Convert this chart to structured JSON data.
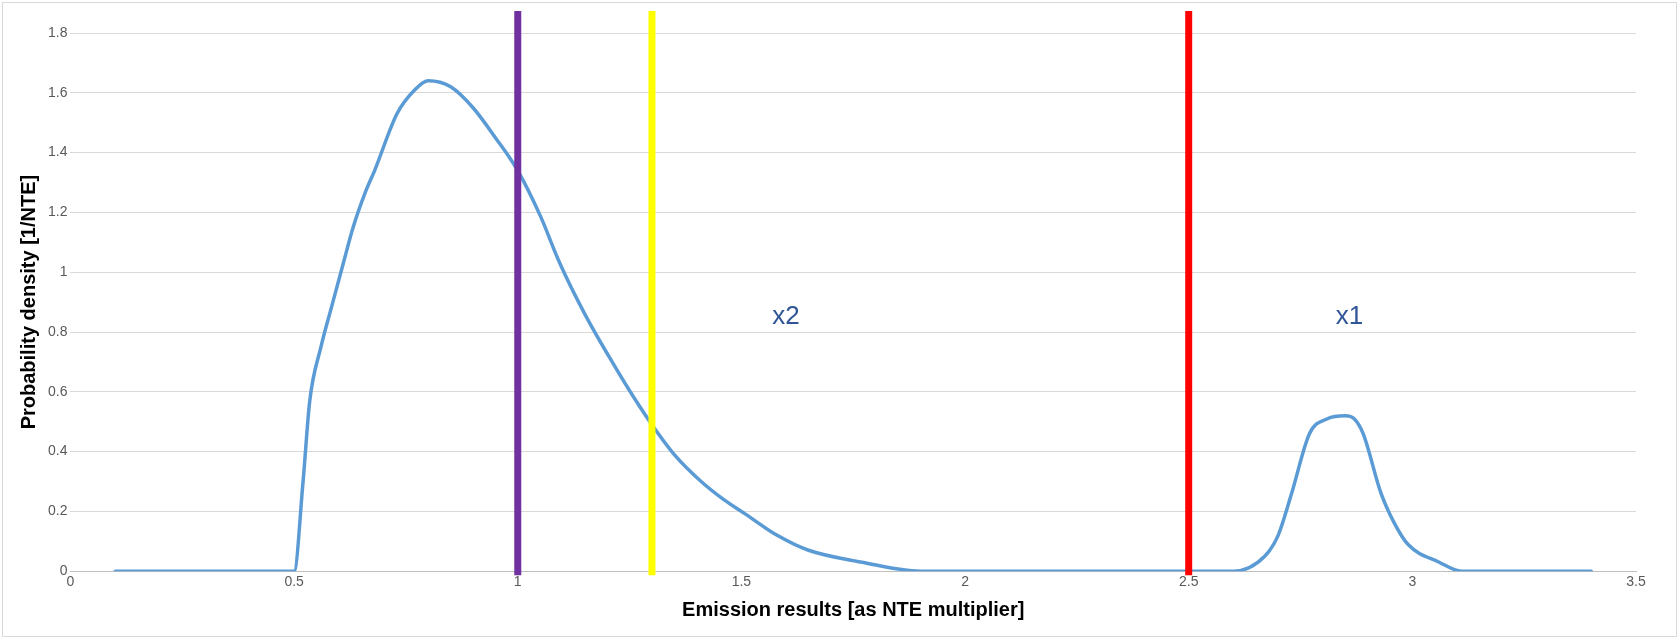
{
  "chart_data": {
    "type": "line",
    "xlabel": "Emission results [as NTE multiplier]",
    "ylabel": "Probability density [1/NTE]",
    "series": [
      {
        "color": "#5b9bd5",
        "x": [
          0.1,
          0.3,
          0.45,
          0.5,
          0.52,
          0.535,
          0.56,
          0.583,
          0.61,
          0.632,
          0.66,
          0.68,
          0.73,
          0.77,
          0.8,
          0.85,
          0.9,
          0.95,
          1.0,
          1.05,
          1.094,
          1.15,
          1.215,
          1.26,
          1.3,
          1.35,
          1.41,
          1.46,
          1.51,
          1.58,
          1.65,
          1.77,
          1.9,
          2.2,
          2.5,
          2.6,
          2.67,
          2.7,
          2.73,
          2.77,
          2.81,
          2.85,
          2.87,
          2.89,
          2.93,
          2.96,
          2.99,
          3.06,
          3.11,
          3.2,
          3.4
        ],
        "values": [
          0,
          0,
          0,
          0,
          0.3,
          0.57,
          0.75,
          0.88,
          1.03,
          1.15,
          1.27,
          1.34,
          1.53,
          1.61,
          1.64,
          1.62,
          1.55,
          1.45,
          1.34,
          1.19,
          1.03,
          0.86,
          0.69,
          0.58,
          0.49,
          0.39,
          0.3,
          0.24,
          0.19,
          0.12,
          0.07,
          0.03,
          0,
          0,
          0,
          0,
          0.05,
          0.12,
          0.26,
          0.46,
          0.51,
          0.52,
          0.51,
          0.46,
          0.26,
          0.16,
          0.09,
          0.03,
          0,
          0,
          0
        ]
      }
    ],
    "xlim": [
      0,
      3.5
    ],
    "xticks": [
      0,
      0.5,
      1,
      1.5,
      2,
      2.5,
      3,
      3.5
    ],
    "ylim": [
      0,
      1.8
    ],
    "yticks": [
      0,
      0.2,
      0.4,
      0.6,
      0.8,
      1,
      1.2,
      1.4,
      1.6,
      1.8
    ],
    "grid": "y",
    "legend": false,
    "marker": "none",
    "line_style": "solid",
    "ref_lines": [
      {
        "axis": "x",
        "value": 1,
        "color": "#7030a0"
      },
      {
        "axis": "x",
        "value": 1.3,
        "color": "#ffff00"
      },
      {
        "axis": "x",
        "value": 2.5,
        "color": "#ff0000"
      }
    ],
    "annotations": [
      "x2",
      "x1"
    ]
  }
}
